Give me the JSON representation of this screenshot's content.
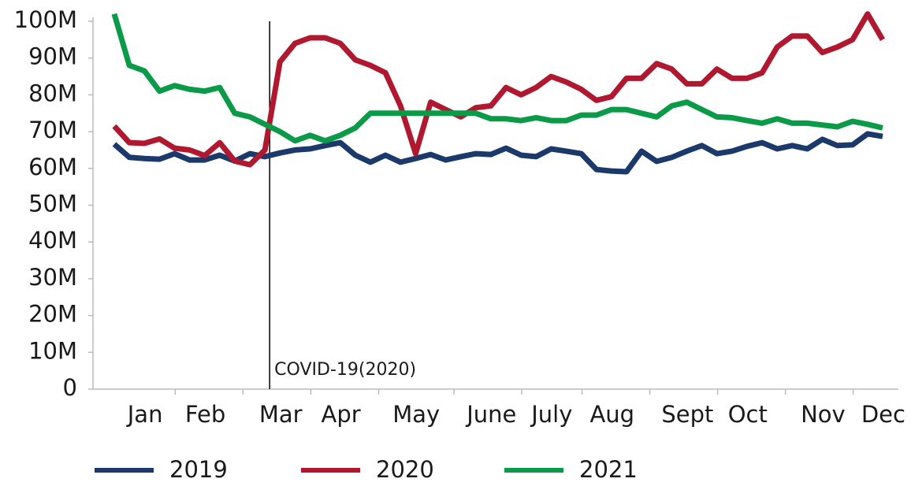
{
  "chart_data": {
    "type": "line",
    "categories": [
      null,
      "Jan",
      null,
      null,
      null,
      "Feb",
      null,
      null,
      null,
      null,
      "Mar",
      null,
      null,
      null,
      "Apr",
      null,
      null,
      null,
      null,
      "May",
      null,
      null,
      null,
      null,
      "June",
      null,
      null,
      null,
      "July",
      null,
      null,
      null,
      "Aug",
      null,
      null,
      null,
      null,
      "Sept",
      null,
      null,
      null,
      "Oct",
      null,
      null,
      null,
      null,
      "Nov",
      null,
      null,
      null,
      "Dec",
      null
    ],
    "series": [
      {
        "name": "2019",
        "color": "#1b3a6b",
        "values": [
          66.6,
          63,
          62.7,
          62.5,
          64,
          62.3,
          62.3,
          63.6,
          62,
          64,
          63.2,
          64.2,
          65,
          65.3,
          66.2,
          67,
          63.6,
          61.7,
          63.6,
          61.7,
          62.7,
          63.8,
          62.3,
          63.2,
          64,
          63.8,
          65.5,
          63.6,
          63.2,
          65.3,
          64.7,
          64,
          59.7,
          59.3,
          59.1,
          64.7,
          61.9,
          63,
          64.7,
          66.2,
          64,
          64.7,
          66,
          67,
          65.3,
          66.2,
          65.3,
          67.9,
          66.2,
          66.4,
          69.4,
          68.7
        ]
      },
      {
        "name": "2020",
        "color": "#b0182f",
        "values": [
          71.5,
          67,
          66.8,
          68,
          65.5,
          65,
          63.5,
          67,
          62,
          61,
          65,
          89,
          94,
          95.5,
          95.5,
          94,
          89.5,
          88,
          86,
          77,
          64,
          78,
          76,
          74,
          76.5,
          77,
          82,
          80,
          82,
          85,
          83.5,
          81.5,
          78.5,
          79.5,
          84.5,
          84.5,
          88.5,
          87,
          83,
          83,
          87,
          84.5,
          84.5,
          86,
          93,
          96,
          96,
          91.5,
          93,
          95,
          102,
          95
        ]
      },
      {
        "name": "2021",
        "color": "#0a9a48",
        "values": [
          102,
          88,
          86.5,
          81,
          82.5,
          81.5,
          81,
          82,
          75,
          74,
          72,
          70,
          67.5,
          69,
          67.5,
          69,
          71,
          75,
          75,
          75,
          75,
          75,
          75,
          75,
          75,
          73.5,
          73.5,
          73,
          73.8,
          73,
          73,
          74.5,
          74.5,
          76,
          76,
          75,
          74,
          77,
          78,
          76,
          74,
          73.8,
          73,
          72.3,
          73.5,
          72.3,
          72.3,
          71.8,
          71.3,
          72.8,
          72,
          71
        ]
      }
    ],
    "ylim": [
      0,
      100
    ],
    "yticks": [
      0,
      {
        "value": 10,
        "label": "10M"
      },
      {
        "value": 20,
        "label": "20M"
      },
      {
        "value": 30,
        "label": "30M"
      },
      {
        "value": 40,
        "label": "40M"
      },
      {
        "value": 50,
        "label": "50M"
      },
      {
        "value": 60,
        "label": "60M"
      },
      {
        "value": 70,
        "label": "70M"
      },
      {
        "value": 80,
        "label": "80M"
      },
      {
        "value": 90,
        "label": "90M"
      },
      {
        "value": 100,
        "label": "100M"
      }
    ],
    "annotations": [
      {
        "text": "COVID-19(2020)"
      }
    ],
    "grid": false,
    "legend": "bottom"
  }
}
